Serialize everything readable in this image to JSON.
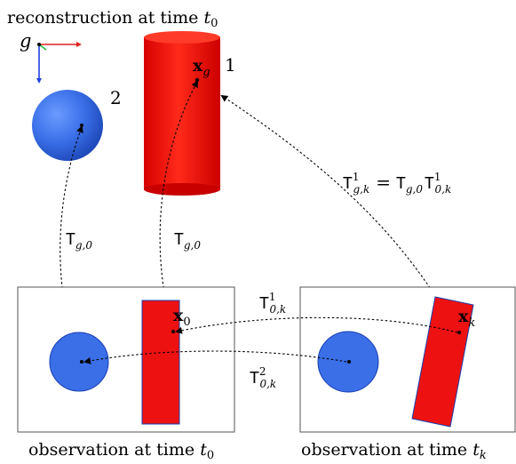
{
  "title": {
    "text": "reconstruction at time ",
    "sub": "0"
  },
  "frame_label": "g",
  "objects": {
    "sphere_id": "2",
    "cylinder_id": "1",
    "point_xg": {
      "base": "x",
      "sub": "g"
    },
    "point_x0": {
      "base": "x",
      "sub": "0"
    },
    "point_xk": {
      "base": "x",
      "sub": "k"
    }
  },
  "transforms": {
    "tg0_left": {
      "base": "T",
      "sub": "g,0"
    },
    "tg0_mid": {
      "base": "T",
      "sub": "g,0"
    },
    "eq_lhs": {
      "base": "T",
      "sup": "1",
      "sub": "g,k"
    },
    "eq_r1": {
      "base": "T",
      "sub": "g,0"
    },
    "eq_r2": {
      "base": "T",
      "sup": "1",
      "sub": "0,k"
    },
    "t0k1": {
      "base": "T",
      "sup": "1",
      "sub": "0,k"
    },
    "t0k2": {
      "base": "T",
      "sup": "2",
      "sub": "0,k"
    }
  },
  "captions": {
    "left": {
      "text": "observation at time ",
      "sub": "0"
    },
    "right": {
      "text": "observation at time ",
      "sub": "k"
    }
  },
  "colors": {
    "red": "#ee1111",
    "blue": "#3a6fe8",
    "dark_blue": "#1a3fb0"
  }
}
